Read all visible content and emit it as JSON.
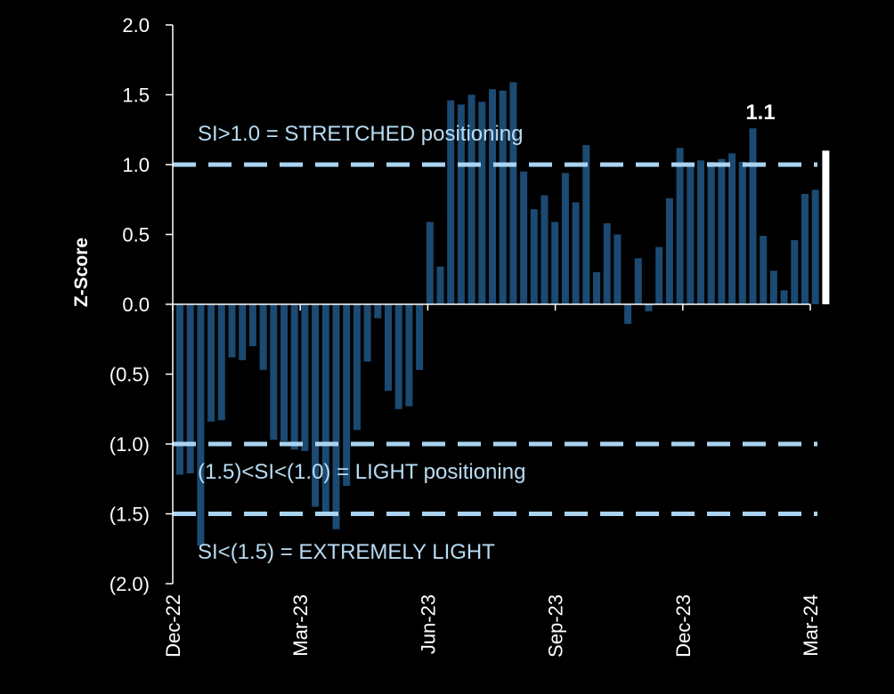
{
  "chart_data": {
    "type": "bar",
    "ylabel": "Z-Score",
    "ylim": [
      -2.0,
      2.0
    ],
    "y_ticks": [
      "(2.0)",
      "(1.5)",
      "(1.0)",
      "(0.5)",
      "0.0",
      "0.5",
      "1.0",
      "1.5",
      "2.0"
    ],
    "x_ticks": [
      "Dec-22",
      "Mar-23",
      "Jun-23",
      "Sep-23",
      "Dec-23",
      "Mar-24"
    ],
    "grid": false,
    "values": [
      -1.22,
      -1.21,
      -1.73,
      -0.84,
      -0.83,
      -0.38,
      -0.4,
      -0.3,
      -0.47,
      -0.97,
      -0.98,
      -1.04,
      -1.05,
      -1.45,
      -1.49,
      -1.61,
      -1.3,
      -0.9,
      -0.41,
      -0.1,
      -0.62,
      -0.75,
      -0.73,
      -0.47,
      0.59,
      0.27,
      1.46,
      1.43,
      1.5,
      1.45,
      1.54,
      1.53,
      1.59,
      0.95,
      0.68,
      0.78,
      0.59,
      0.94,
      0.73,
      1.14,
      0.23,
      0.58,
      0.5,
      -0.14,
      0.33,
      -0.05,
      0.41,
      0.76,
      1.12,
      1.0,
      1.03,
      1.02,
      1.04,
      1.08,
      1.02,
      1.26,
      0.49,
      0.24,
      0.1,
      0.46,
      0.79,
      0.82
    ],
    "colors": {
      "bars": "#1b4a72",
      "latest_bar": "#ffffff",
      "threshold_lines": "#a9d3f0",
      "axes": "#ffffff"
    },
    "latest": {
      "value": 1.1,
      "label": "1.1"
    },
    "thresholds": [
      {
        "value": 1.0,
        "label": "SI>1.0 = STRETCHED positioning"
      },
      {
        "value": -1.0,
        "label": "(1.5)<SI<(1.0) = LIGHT positioning"
      },
      {
        "value": -1.5,
        "label": "SI<(1.5) = EXTREMELY LIGHT"
      }
    ]
  }
}
